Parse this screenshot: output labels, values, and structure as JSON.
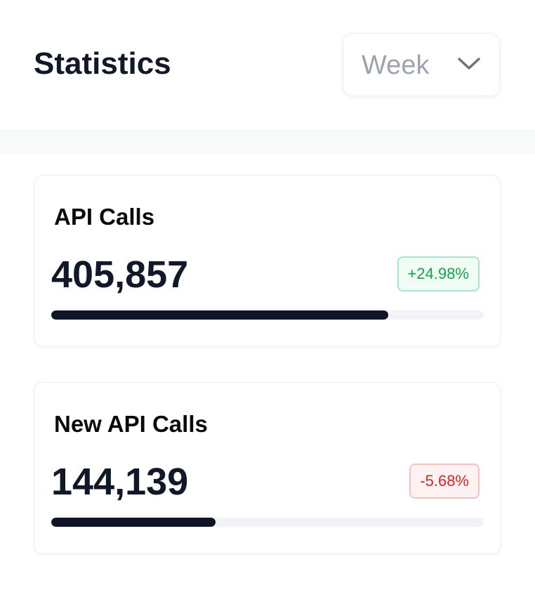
{
  "header": {
    "title": "Statistics",
    "period": "Week"
  },
  "cards": [
    {
      "label": "API Calls",
      "value": "405,857",
      "change": "+24.98%",
      "progress": 78
    },
    {
      "label": "New API Calls",
      "value": "144,139",
      "change": "-5.68%",
      "progress": 38
    }
  ]
}
